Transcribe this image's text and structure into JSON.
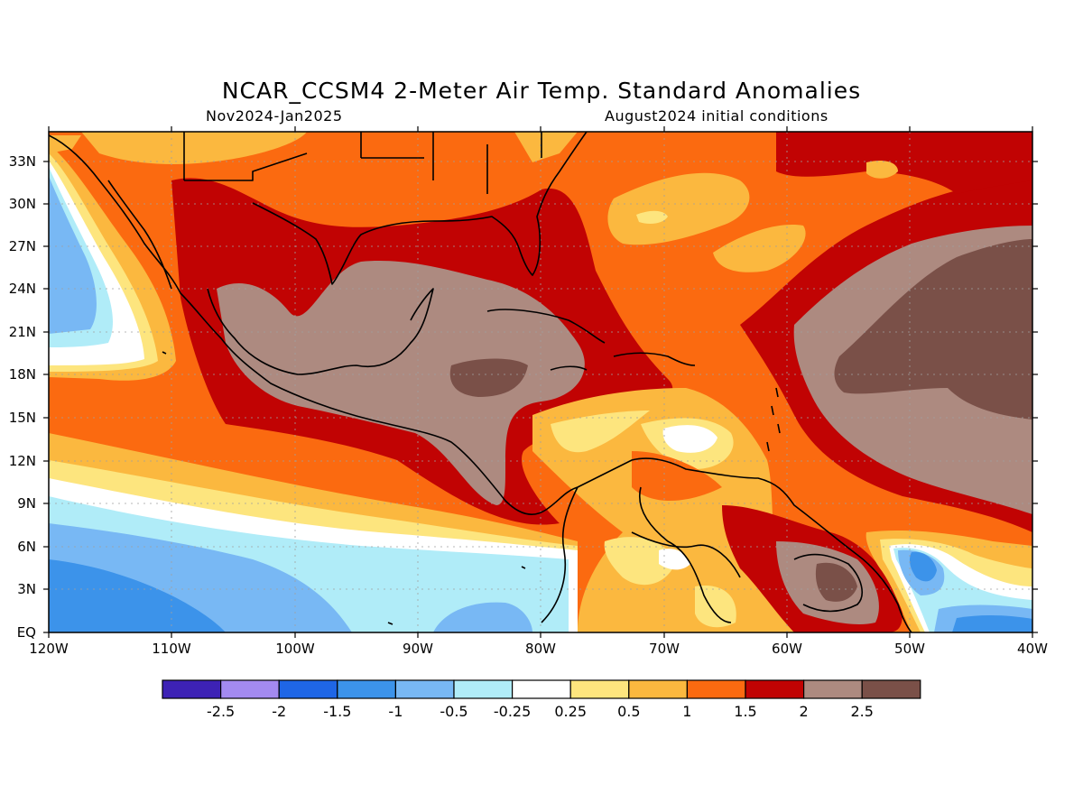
{
  "title": "NCAR_CCSM4 2-Meter Air Temp. Standard Anomalies",
  "subtitle_left": "Nov2024-Jan2025",
  "subtitle_right": "August2024 initial conditions",
  "map": {
    "lat_labels": [
      "33N",
      "30N",
      "27N",
      "24N",
      "21N",
      "18N",
      "15N",
      "12N",
      "9N",
      "6N",
      "3N",
      "EQ"
    ],
    "lon_labels": [
      "120W",
      "110W",
      "100W",
      "90W",
      "80W",
      "70W",
      "60W",
      "50W",
      "40W"
    ]
  },
  "legend": {
    "colors": [
      "#3d22b5",
      "#a38af0",
      "#1f66e6",
      "#3c93ea",
      "#78b8f4",
      "#b0ecf8",
      "#ffffff",
      "#fde57e",
      "#fbb83f",
      "#fb6a10",
      "#c10303",
      "#ad8a80",
      "#7a5048"
    ],
    "labels": [
      "-2.5",
      "-2",
      "-1.5",
      "-1",
      "-0.5",
      "-0.25",
      "0.25",
      "0.5",
      "1",
      "1.5",
      "2",
      "2.5"
    ]
  }
}
